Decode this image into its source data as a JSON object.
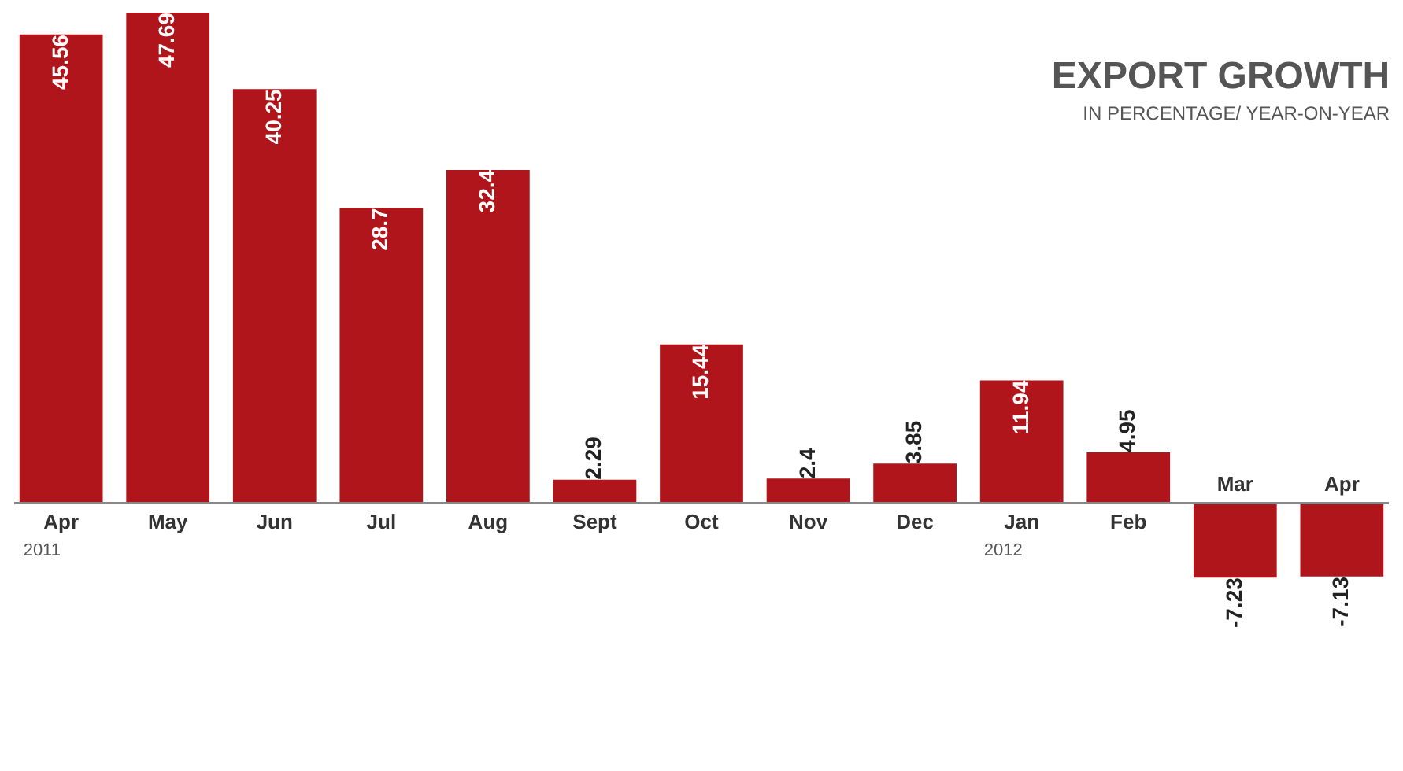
{
  "chart_data": {
    "type": "bar",
    "title": "EXPORT GROWTH",
    "subtitle": "IN PERCENTAGE/ YEAR-ON-YEAR",
    "categories": [
      "Apr",
      "May",
      "Jun",
      "Jul",
      "Aug",
      "Sept",
      "Oct",
      "Nov",
      "Dec",
      "Jan",
      "Feb",
      "Mar",
      "Apr"
    ],
    "values": [
      45.56,
      47.69,
      40.25,
      28.7,
      32.4,
      2.29,
      15.44,
      2.4,
      3.85,
      11.94,
      4.95,
      -7.23,
      -7.13
    ],
    "color": "#b0151c",
    "data_labels": true,
    "annotations": [
      "2011",
      "2012"
    ]
  }
}
